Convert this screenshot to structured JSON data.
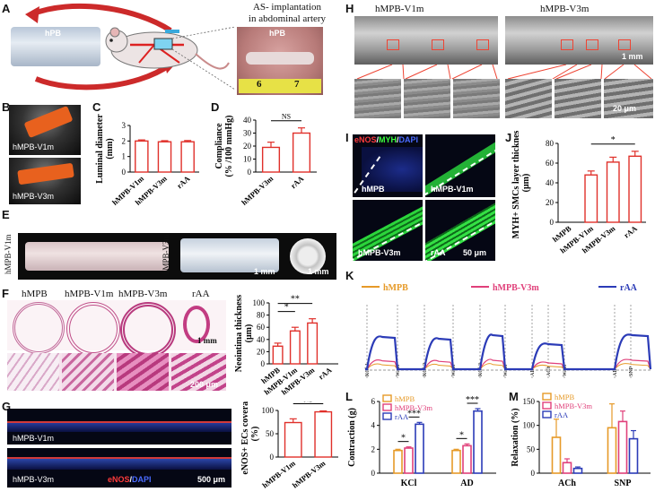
{
  "panels": {
    "A": {
      "letter": "A",
      "title_line1": "AS- implantation",
      "title_line2": "in abdominal artery",
      "hpb_tag": "hPB",
      "ruler_numbers": [
        "6",
        "7"
      ]
    },
    "B": {
      "letter": "B",
      "labels": [
        "hMPB-V1m",
        "hMPB-V3m"
      ]
    },
    "C": {
      "letter": "C"
    },
    "D": {
      "letter": "D"
    },
    "E": {
      "letter": "E",
      "labels": [
        "hMPB-V1m",
        "hMPB-V3m"
      ],
      "scale": "1 mm"
    },
    "F": {
      "letter": "F",
      "columns": [
        "hMPB",
        "hMPB-V1m",
        "hMPB-V3m",
        "rAA"
      ],
      "scale_top": "1 mm",
      "scale_bottom": "200 μm"
    },
    "G": {
      "letter": "G",
      "labels": [
        "hMPB-V1m",
        "hMPB-V3m"
      ],
      "stain_enos": "eNOS",
      "stain_sep": "/",
      "stain_dapi": "DAPI",
      "scale": "500 μm"
    },
    "H": {
      "letter": "H",
      "titles": [
        "hMPB-V1m",
        "hMPB-V3m"
      ],
      "scale_top": "1 mm",
      "scale_bottom": "20 μm"
    },
    "I": {
      "letter": "I",
      "stain_enos": "eNOS",
      "stain_sep1": "/",
      "stain_myh": "MYH",
      "stain_sep2": "/",
      "stain_dapi": "DAPI",
      "labels": [
        "hMPB",
        "hMPB-V1m",
        "hMPB-V3m",
        "rAA"
      ],
      "scale": "50 μm"
    },
    "J": {
      "letter": "J"
    },
    "K": {
      "letter": "K",
      "legend": [
        "hMPB",
        "hMPB-V3m",
        "rAA"
      ],
      "events": [
        "KCl-1",
        "Wash",
        "KCl-2",
        "Wash",
        "KCl-3",
        "Wash",
        "AD",
        "ACh",
        "Wash",
        "AD",
        "SNP"
      ]
    },
    "L": {
      "letter": "L"
    },
    "M": {
      "letter": "M"
    }
  },
  "chart_data": [
    {
      "panel": "C",
      "type": "bar",
      "categories": [
        "hMPB-V1m",
        "hMPB-V3m",
        "rAA"
      ],
      "values": [
        2.0,
        1.95,
        1.95
      ],
      "errors": [
        0.07,
        0.07,
        0.08
      ],
      "ylabel": "Luminal diameter (mm)",
      "yticks": [
        "0",
        "1",
        "2",
        "3"
      ],
      "ylim": [
        0,
        3
      ]
    },
    {
      "panel": "D",
      "type": "bar",
      "categories": [
        "hMPB-V3m",
        "rAA"
      ],
      "values": [
        19,
        30
      ],
      "errors": [
        4,
        4
      ],
      "ylabel": "Compliance (% /100 mmHg)",
      "yticks": [
        "0",
        "10",
        "20",
        "30",
        "40"
      ],
      "ylim": [
        0,
        40
      ],
      "significance": [
        {
          "between": [
            "hMPB-V3m",
            "rAA"
          ],
          "label": "NS"
        }
      ]
    },
    {
      "panel": "F",
      "type": "bar",
      "categories": [
        "hMPB",
        "hMPB-V1m",
        "hMPB-V3m",
        "rAA"
      ],
      "values": [
        29,
        54,
        67,
        0
      ],
      "errors": [
        5,
        6,
        7,
        0
      ],
      "ylabel": "Neointima thickness (μm)",
      "yticks": [
        "0",
        "20",
        "40",
        "60",
        "80",
        "100"
      ],
      "ylim": [
        0,
        100
      ],
      "significance": [
        {
          "between": [
            "hMPB",
            "hMPB-V1m"
          ],
          "label": "*"
        },
        {
          "between": [
            "hMPB",
            "hMPB-V3m"
          ],
          "label": "**"
        }
      ]
    },
    {
      "panel": "G",
      "type": "bar",
      "categories": [
        "hMPB-V1m",
        "hMPB-V3m"
      ],
      "values": [
        74,
        97
      ],
      "errors": [
        8,
        2
      ],
      "ylabel": "eNOS+ ECs coverage (%)",
      "yticks": [
        "0",
        "50",
        "100"
      ],
      "ylim": [
        0,
        100
      ],
      "significance": [
        {
          "between": [
            "hMPB-V1m",
            "hMPB-V3m"
          ],
          "label": "NS"
        }
      ]
    },
    {
      "panel": "J",
      "type": "bar",
      "categories": [
        "hMPB",
        "hMPB-V1m",
        "hMPB-V3m",
        "rAA"
      ],
      "values": [
        0,
        48,
        61,
        67
      ],
      "errors": [
        0,
        4,
        5,
        5
      ],
      "ylabel": "MYH+ SMCs layer thickness (μm)",
      "yticks": [
        "0",
        "20",
        "40",
        "60",
        "80"
      ],
      "ylim": [
        0,
        80
      ],
      "significance": [
        {
          "between": [
            "hMPB-V1m",
            "rAA"
          ],
          "label": "*"
        }
      ]
    },
    {
      "panel": "L",
      "type": "bar",
      "groups": [
        "KCl",
        "AD"
      ],
      "series": [
        {
          "name": "hMPB",
          "color": "#e69a28",
          "values": [
            1.9,
            1.9
          ],
          "errors": [
            0.1,
            0.1
          ]
        },
        {
          "name": "hMPB-V3m",
          "color": "#e0407a",
          "values": [
            2.1,
            2.3
          ],
          "errors": [
            0.1,
            0.15
          ]
        },
        {
          "name": "rAA",
          "color": "#2b3bb7",
          "values": [
            4.1,
            5.2
          ],
          "errors": [
            0.15,
            0.2
          ]
        }
      ],
      "ylabel": "Contraction (g)",
      "yticks": [
        "0",
        "2",
        "4",
        "6"
      ],
      "ylim": [
        0,
        6
      ],
      "significance": [
        {
          "group": "KCl",
          "label": "*"
        },
        {
          "group": "KCl",
          "label": "***"
        },
        {
          "group": "AD",
          "label": "*"
        },
        {
          "group": "AD",
          "label": "***"
        }
      ]
    },
    {
      "panel": "M",
      "type": "bar",
      "groups": [
        "ACh",
        "SNP"
      ],
      "series": [
        {
          "name": "hMPB",
          "color": "#e69a28",
          "values": [
            75,
            95
          ],
          "errors": [
            38,
            50
          ]
        },
        {
          "name": "hMPB-V3m",
          "color": "#e0407a",
          "values": [
            22,
            108
          ],
          "errors": [
            8,
            22
          ]
        },
        {
          "name": "rAA",
          "color": "#2b3bb7",
          "values": [
            10,
            72
          ],
          "errors": [
            3,
            17
          ]
        }
      ],
      "ylabel": "Relaxation (%)",
      "yticks": [
        "0",
        "50",
        "100",
        "150"
      ],
      "ylim": [
        0,
        150
      ]
    }
  ]
}
